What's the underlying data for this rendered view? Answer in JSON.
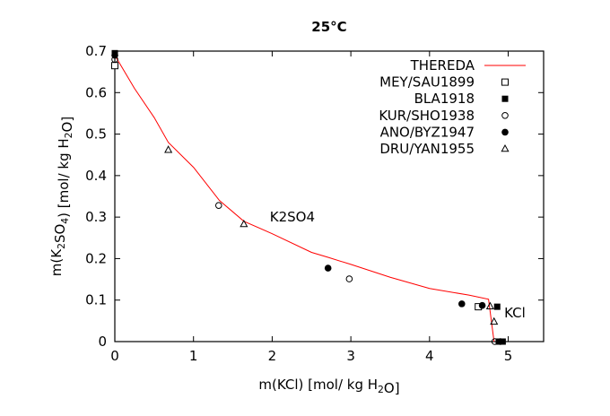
{
  "chart_data": {
    "type": "scatter",
    "title": "25°C",
    "xlabel": "m(KCl) [mol/ kg H2O]",
    "ylabel": "m(K2SO4) [mol/ kg H2O]",
    "xlim": [
      0,
      5.45
    ],
    "ylim": [
      0,
      0.7
    ],
    "xticks": [
      0,
      1,
      2,
      3,
      4,
      5
    ],
    "yticks": [
      0,
      0.1,
      0.2,
      0.3,
      0.4,
      0.5,
      0.6,
      0.7
    ],
    "grid": false,
    "legend_position": "top-right",
    "annotations": [
      {
        "text": "K2SO4",
        "x": 1.97,
        "y": 0.29
      },
      {
        "text": "KCl",
        "x": 4.95,
        "y": 0.058
      }
    ],
    "series": [
      {
        "name": "THEREDA",
        "kind": "line",
        "color": "#ff0000",
        "x": [
          0,
          0.25,
          0.5,
          0.68,
          1.0,
          1.33,
          1.64,
          2.0,
          2.5,
          2.71,
          3.0,
          3.5,
          4.0,
          4.5,
          4.75,
          4.82
        ],
        "y": [
          0.69,
          0.61,
          0.54,
          0.48,
          0.42,
          0.34,
          0.29,
          0.26,
          0.215,
          0.203,
          0.186,
          0.155,
          0.128,
          0.112,
          0.102,
          0.0
        ]
      },
      {
        "name": "MEY/SAU1899",
        "marker": "open-square",
        "x": [
          0,
          4.62
        ],
        "y": [
          0.665,
          0.084
        ]
      },
      {
        "name": "BLA1918",
        "marker": "filled-square",
        "x": [
          0,
          4.86,
          4.88,
          4.93
        ],
        "y": [
          0.695,
          0.084,
          0.0,
          0.0
        ]
      },
      {
        "name": "KUR/SHO1938",
        "marker": "open-circle",
        "x": [
          0,
          1.32,
          2.98,
          4.83
        ],
        "y": [
          0.68,
          0.328,
          0.151,
          0.0
        ]
      },
      {
        "name": "ANO/BYZ1947",
        "marker": "filled-circle",
        "x": [
          0,
          2.71,
          4.41,
          4.67,
          4.9
        ],
        "y": [
          0.69,
          0.177,
          0.091,
          0.087,
          0.0
        ]
      },
      {
        "name": "DRU/YAN1955",
        "marker": "open-triangle",
        "x": [
          0.68,
          1.64,
          4.77,
          4.82
        ],
        "y": [
          0.462,
          0.283,
          0.085,
          0.048
        ]
      }
    ]
  }
}
